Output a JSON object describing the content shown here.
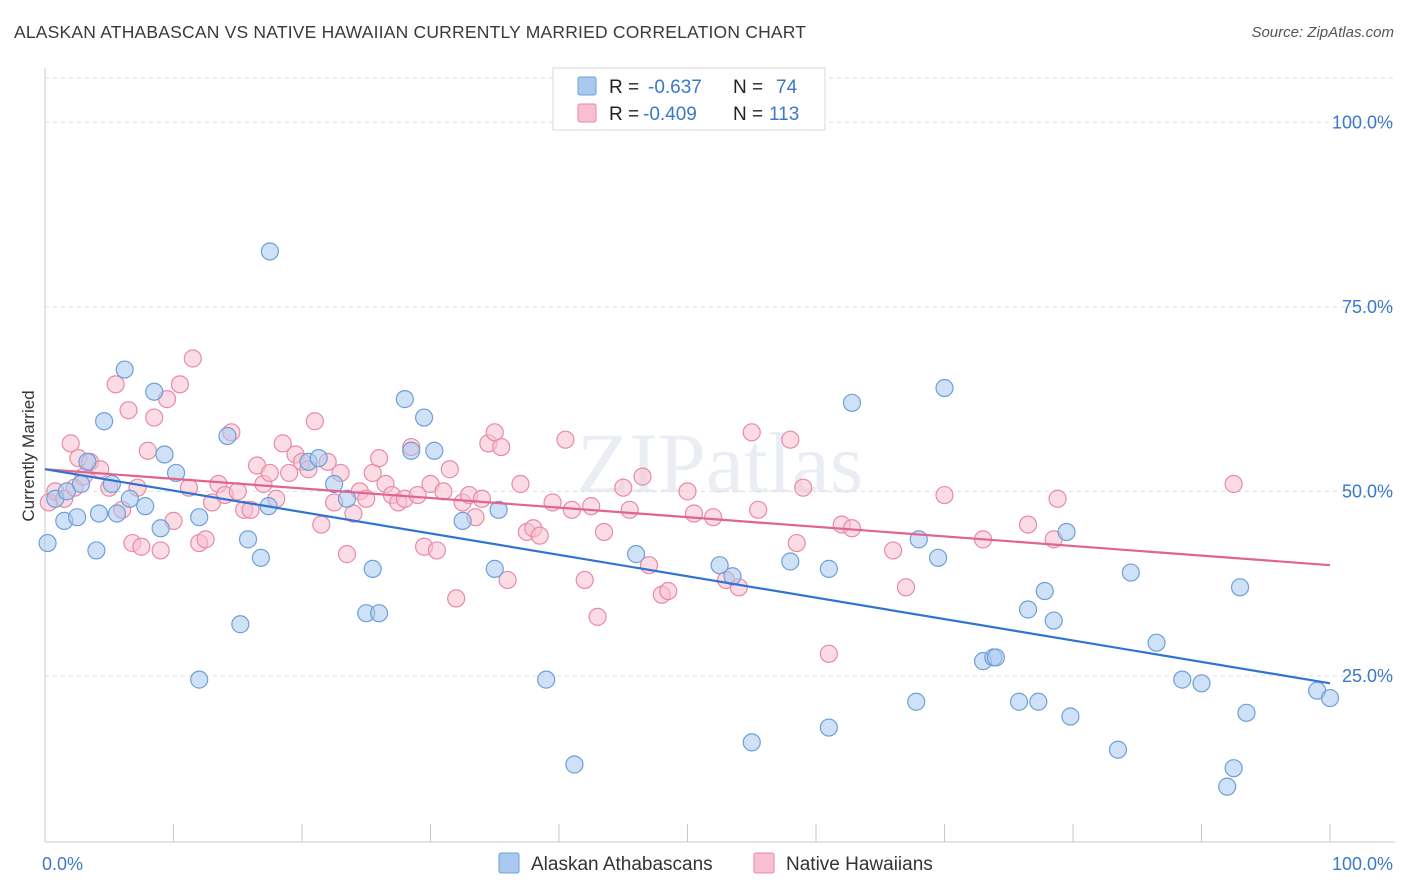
{
  "title": "ALASKAN ATHABASCAN VS NATIVE HAWAIIAN CURRENTLY MARRIED CORRELATION CHART",
  "source": "Source: ZipAtlas.com",
  "watermark": "ZIPatlas",
  "colors": {
    "blue_fill": "#a8c8f0",
    "blue_stroke": "#6f9fd8",
    "blue_line": "#2f74d0",
    "pink_fill": "#f7bfd0",
    "pink_stroke": "#e88aa8",
    "pink_line": "#e0648e",
    "tick_label": "#3a78c8",
    "grid": "#dddddd"
  },
  "legend": {
    "rows": [
      {
        "r_label": "R =",
        "r_value": "-0.637",
        "n_label": "N =",
        "n_value": "74"
      },
      {
        "r_label": "R =",
        "r_value": "-0.409",
        "n_label": "N =",
        "n_value": "113"
      }
    ]
  },
  "chart_data": {
    "type": "scatter",
    "title": "ALASKAN ATHABASCAN VS NATIVE HAWAIIAN CURRENTLY MARRIED CORRELATION CHART",
    "xlabel": "",
    "ylabel": "Currently Married",
    "xlim": [
      0,
      100
    ],
    "ylim": [
      2.5,
      106
    ],
    "x_tick_labels": [
      "0.0%",
      "100.0%"
    ],
    "y_ticks": [
      25,
      50,
      75,
      100
    ],
    "y_tick_labels": [
      "25.0%",
      "50.0%",
      "75.0%",
      "100.0%"
    ],
    "legend_position": "top-center",
    "bottom_legend": [
      "Alaskan Athabascans",
      "Native Hawaiians"
    ],
    "series": [
      {
        "name": "Alaskan Athabascans",
        "r": -0.637,
        "n": 74,
        "trend": {
          "x": [
            0,
            100
          ],
          "y": [
            53.0,
            24.0
          ]
        },
        "points": [
          [
            0.2,
            43
          ],
          [
            0.8,
            49
          ],
          [
            1.5,
            46
          ],
          [
            1.7,
            50
          ],
          [
            2.5,
            46.5
          ],
          [
            2.8,
            51
          ],
          [
            3.3,
            54
          ],
          [
            4,
            42
          ],
          [
            4.2,
            47
          ],
          [
            4.6,
            59.5
          ],
          [
            5.2,
            51
          ],
          [
            5.6,
            47
          ],
          [
            6.2,
            66.5
          ],
          [
            6.6,
            49
          ],
          [
            7.8,
            48
          ],
          [
            8.5,
            63.5
          ],
          [
            9,
            45
          ],
          [
            9.3,
            55
          ],
          [
            10.2,
            52.5
          ],
          [
            12,
            46.5
          ],
          [
            12,
            24.5
          ],
          [
            14.2,
            57.5
          ],
          [
            15.2,
            32
          ],
          [
            15.8,
            43.5
          ],
          [
            16.8,
            41
          ],
          [
            17.4,
            48
          ],
          [
            17.5,
            82.5
          ],
          [
            20.5,
            54
          ],
          [
            21.3,
            54.5
          ],
          [
            22.5,
            51
          ],
          [
            23.5,
            49
          ],
          [
            25,
            33.5
          ],
          [
            25.5,
            39.5
          ],
          [
            26,
            33.5
          ],
          [
            28,
            62.5
          ],
          [
            28.5,
            55.5
          ],
          [
            29.5,
            60
          ],
          [
            30.3,
            55.5
          ],
          [
            32.5,
            46
          ],
          [
            35,
            39.5
          ],
          [
            35.3,
            47.5
          ],
          [
            39,
            24.5
          ],
          [
            41.2,
            13
          ],
          [
            46,
            41.5
          ],
          [
            52.5,
            40
          ],
          [
            53.5,
            38.5
          ],
          [
            55,
            16
          ],
          [
            58,
            40.5
          ],
          [
            61,
            18
          ],
          [
            61,
            39.5
          ],
          [
            62.8,
            62
          ],
          [
            67.8,
            21.5
          ],
          [
            68,
            43.5
          ],
          [
            69.5,
            41
          ],
          [
            70,
            64
          ],
          [
            73,
            27
          ],
          [
            73.8,
            27.5
          ],
          [
            74,
            27.5
          ],
          [
            75.8,
            21.5
          ],
          [
            76.5,
            34
          ],
          [
            77.3,
            21.5
          ],
          [
            77.8,
            36.5
          ],
          [
            78.5,
            32.5
          ],
          [
            79.5,
            44.5
          ],
          [
            79.8,
            19.5
          ],
          [
            83.5,
            15
          ],
          [
            84.5,
            39
          ],
          [
            86.5,
            29.5
          ],
          [
            88.5,
            24.5
          ],
          [
            90,
            24
          ],
          [
            92,
            10
          ],
          [
            92.5,
            12.5
          ],
          [
            93,
            37
          ],
          [
            93.5,
            20
          ],
          [
            99,
            23
          ],
          [
            100,
            22
          ]
        ]
      },
      {
        "name": "Native Hawaiians",
        "r": -0.409,
        "n": 113,
        "trend": {
          "x": [
            0,
            100
          ],
          "y": [
            53.0,
            40.0
          ]
        },
        "points": [
          [
            0.3,
            48.5
          ],
          [
            0.8,
            50
          ],
          [
            1.5,
            49
          ],
          [
            2,
            56.5
          ],
          [
            2.3,
            50.5
          ],
          [
            2.6,
            54.5
          ],
          [
            3,
            52
          ],
          [
            3.5,
            54
          ],
          [
            4.3,
            53
          ],
          [
            5,
            50.5
          ],
          [
            5.5,
            64.5
          ],
          [
            6,
            47.5
          ],
          [
            6.5,
            61
          ],
          [
            6.8,
            43
          ],
          [
            7.2,
            50.5
          ],
          [
            7.5,
            42.5
          ],
          [
            8,
            55.5
          ],
          [
            8.5,
            60
          ],
          [
            9,
            42
          ],
          [
            9.5,
            62.5
          ],
          [
            10,
            46
          ],
          [
            10.5,
            64.5
          ],
          [
            11.2,
            50.5
          ],
          [
            11.5,
            68
          ],
          [
            12,
            43
          ],
          [
            12.5,
            43.5
          ],
          [
            13,
            48.5
          ],
          [
            13.5,
            51
          ],
          [
            14,
            49.5
          ],
          [
            14.5,
            58
          ],
          [
            15,
            50
          ],
          [
            15.5,
            47.5
          ],
          [
            16,
            47.5
          ],
          [
            16.5,
            53.5
          ],
          [
            17,
            51
          ],
          [
            17.5,
            52.5
          ],
          [
            18,
            49
          ],
          [
            18.5,
            56.5
          ],
          [
            19,
            52.5
          ],
          [
            19.5,
            55
          ],
          [
            20,
            54
          ],
          [
            20.5,
            53
          ],
          [
            21,
            59.5
          ],
          [
            21.5,
            45.5
          ],
          [
            22,
            54
          ],
          [
            22.5,
            48.5
          ],
          [
            23,
            52.5
          ],
          [
            23.5,
            41.5
          ],
          [
            24,
            47
          ],
          [
            24.5,
            50
          ],
          [
            25,
            49
          ],
          [
            25.5,
            52.5
          ],
          [
            26,
            54.5
          ],
          [
            26.5,
            51
          ],
          [
            27,
            49.5
          ],
          [
            27.5,
            48.5
          ],
          [
            28,
            49
          ],
          [
            28.5,
            56
          ],
          [
            29,
            49.5
          ],
          [
            29.5,
            42.5
          ],
          [
            30,
            51
          ],
          [
            30.5,
            42
          ],
          [
            31,
            50
          ],
          [
            31.5,
            53
          ],
          [
            32,
            35.5
          ],
          [
            32.5,
            48.5
          ],
          [
            33,
            49.5
          ],
          [
            33.5,
            46.5
          ],
          [
            34,
            49
          ],
          [
            34.5,
            56.5
          ],
          [
            35,
            58
          ],
          [
            35.5,
            56
          ],
          [
            36,
            38
          ],
          [
            37,
            51
          ],
          [
            37.5,
            44.5
          ],
          [
            38,
            45
          ],
          [
            38.5,
            44
          ],
          [
            39.5,
            48.5
          ],
          [
            40.5,
            57
          ],
          [
            41,
            47.5
          ],
          [
            42,
            38
          ],
          [
            42.5,
            48
          ],
          [
            43,
            33
          ],
          [
            43.5,
            44.5
          ],
          [
            45,
            50.5
          ],
          [
            45.5,
            47.5
          ],
          [
            46.5,
            52
          ],
          [
            47,
            40
          ],
          [
            48,
            36
          ],
          [
            48.5,
            36.5
          ],
          [
            50,
            50
          ],
          [
            50.5,
            47
          ],
          [
            52,
            46.5
          ],
          [
            53,
            38
          ],
          [
            54,
            37
          ],
          [
            55,
            58
          ],
          [
            55.5,
            47.5
          ],
          [
            58,
            57
          ],
          [
            58.5,
            43
          ],
          [
            59,
            50.5
          ],
          [
            61,
            28
          ],
          [
            62,
            45.5
          ],
          [
            62.8,
            45
          ],
          [
            66,
            42
          ],
          [
            67,
            37
          ],
          [
            70,
            49.5
          ],
          [
            73,
            43.5
          ],
          [
            76.5,
            45.5
          ],
          [
            78.5,
            43.5
          ],
          [
            78.8,
            49
          ],
          [
            92.5,
            51
          ]
        ]
      }
    ]
  }
}
